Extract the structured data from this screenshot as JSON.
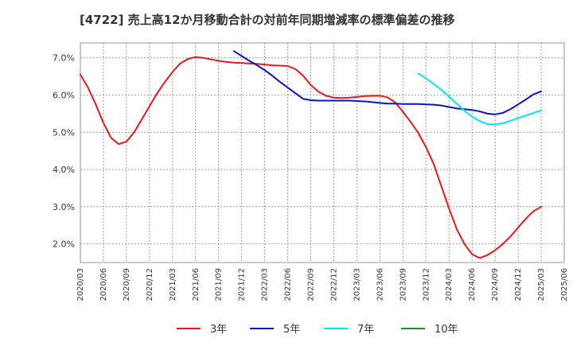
{
  "chart_data": {
    "type": "line",
    "title": "[4722]  売上高12か月移動合計の対前年同期増減率の標準偏差の推移",
    "xlabel": "",
    "ylabel": "",
    "x_ticks": [
      "2020/03",
      "2020/06",
      "2020/09",
      "2020/12",
      "2021/03",
      "2021/06",
      "2021/09",
      "2021/12",
      "2022/03",
      "2022/06",
      "2022/09",
      "2022/12",
      "2023/03",
      "2023/06",
      "2023/09",
      "2023/12",
      "2024/03",
      "2024/06",
      "2024/09",
      "2024/12",
      "2025/03",
      "2025/06"
    ],
    "y_ticks": [
      2.0,
      3.0,
      4.0,
      5.0,
      6.0,
      7.0
    ],
    "y_tick_labels": [
      "2.0%",
      "3.0%",
      "4.0%",
      "5.0%",
      "6.0%",
      "7.0%"
    ],
    "ylim": [
      1.5,
      7.4
    ],
    "grid": true,
    "legend_position": "bottom",
    "series": [
      {
        "name": "3年",
        "color": "#e41a1c",
        "points": [
          [
            "2020/03",
            6.55
          ],
          [
            "2020/04",
            6.2
          ],
          [
            "2020/05",
            5.75
          ],
          [
            "2020/06",
            5.25
          ],
          [
            "2020/07",
            4.85
          ],
          [
            "2020/08",
            4.68
          ],
          [
            "2020/09",
            4.75
          ],
          [
            "2020/10",
            5.0
          ],
          [
            "2020/11",
            5.35
          ],
          [
            "2020/12",
            5.7
          ],
          [
            "2021/01",
            6.05
          ],
          [
            "2021/02",
            6.35
          ],
          [
            "2021/03",
            6.62
          ],
          [
            "2021/04",
            6.85
          ],
          [
            "2021/05",
            6.97
          ],
          [
            "2021/06",
            7.02
          ],
          [
            "2021/07",
            7.0
          ],
          [
            "2021/08",
            6.96
          ],
          [
            "2021/09",
            6.92
          ],
          [
            "2021/10",
            6.89
          ],
          [
            "2021/11",
            6.87
          ],
          [
            "2021/12",
            6.86
          ],
          [
            "2022/01",
            6.85
          ],
          [
            "2022/02",
            6.84
          ],
          [
            "2022/03",
            6.82
          ],
          [
            "2022/04",
            6.8
          ],
          [
            "2022/05",
            6.79
          ],
          [
            "2022/06",
            6.78
          ],
          [
            "2022/07",
            6.7
          ],
          [
            "2022/08",
            6.52
          ],
          [
            "2022/09",
            6.27
          ],
          [
            "2022/10",
            6.09
          ],
          [
            "2022/11",
            5.98
          ],
          [
            "2022/12",
            5.93
          ],
          [
            "2023/01",
            5.92
          ],
          [
            "2023/02",
            5.93
          ],
          [
            "2023/03",
            5.95
          ],
          [
            "2023/04",
            5.97
          ],
          [
            "2023/05",
            5.98
          ],
          [
            "2023/06",
            5.98
          ],
          [
            "2023/07",
            5.94
          ],
          [
            "2023/08",
            5.8
          ],
          [
            "2023/09",
            5.55
          ],
          [
            "2023/10",
            5.28
          ],
          [
            "2023/11",
            4.98
          ],
          [
            "2023/12",
            4.6
          ],
          [
            "2024/01",
            4.15
          ],
          [
            "2024/02",
            3.55
          ],
          [
            "2024/03",
            2.95
          ],
          [
            "2024/04",
            2.4
          ],
          [
            "2024/05",
            2.0
          ],
          [
            "2024/06",
            1.72
          ],
          [
            "2024/07",
            1.62
          ],
          [
            "2024/08",
            1.7
          ],
          [
            "2024/09",
            1.83
          ],
          [
            "2024/10",
            2.0
          ],
          [
            "2024/11",
            2.2
          ],
          [
            "2024/12",
            2.44
          ],
          [
            "2025/01",
            2.68
          ],
          [
            "2025/02",
            2.88
          ],
          [
            "2025/03",
            3.0
          ]
        ]
      },
      {
        "name": "5年",
        "color": "#0a14c8",
        "points": [
          [
            "2021/11",
            7.18
          ],
          [
            "2021/12",
            7.05
          ],
          [
            "2022/01",
            6.92
          ],
          [
            "2022/02",
            6.8
          ],
          [
            "2022/03",
            6.67
          ],
          [
            "2022/04",
            6.52
          ],
          [
            "2022/05",
            6.35
          ],
          [
            "2022/06",
            6.2
          ],
          [
            "2022/07",
            6.05
          ],
          [
            "2022/08",
            5.9
          ],
          [
            "2022/09",
            5.86
          ],
          [
            "2022/10",
            5.85
          ],
          [
            "2022/11",
            5.85
          ],
          [
            "2022/12",
            5.85
          ],
          [
            "2023/01",
            5.85
          ],
          [
            "2023/02",
            5.85
          ],
          [
            "2023/03",
            5.84
          ],
          [
            "2023/04",
            5.83
          ],
          [
            "2023/05",
            5.81
          ],
          [
            "2023/06",
            5.79
          ],
          [
            "2023/07",
            5.77
          ],
          [
            "2023/08",
            5.77
          ],
          [
            "2023/09",
            5.76
          ],
          [
            "2023/10",
            5.76
          ],
          [
            "2023/11",
            5.76
          ],
          [
            "2023/12",
            5.75
          ],
          [
            "2024/01",
            5.74
          ],
          [
            "2024/02",
            5.72
          ],
          [
            "2024/03",
            5.68
          ],
          [
            "2024/04",
            5.64
          ],
          [
            "2024/05",
            5.62
          ],
          [
            "2024/06",
            5.6
          ],
          [
            "2024/07",
            5.56
          ],
          [
            "2024/08",
            5.5
          ],
          [
            "2024/09",
            5.48
          ],
          [
            "2024/10",
            5.52
          ],
          [
            "2024/11",
            5.62
          ],
          [
            "2024/12",
            5.75
          ],
          [
            "2025/01",
            5.88
          ],
          [
            "2025/02",
            6.02
          ],
          [
            "2025/03",
            6.1
          ]
        ]
      },
      {
        "name": "7年",
        "color": "#00e5ee",
        "points": [
          [
            "2023/11",
            6.58
          ],
          [
            "2023/12",
            6.45
          ],
          [
            "2024/01",
            6.3
          ],
          [
            "2024/02",
            6.14
          ],
          [
            "2024/03",
            5.96
          ],
          [
            "2024/04",
            5.77
          ],
          [
            "2024/05",
            5.58
          ],
          [
            "2024/06",
            5.42
          ],
          [
            "2024/07",
            5.3
          ],
          [
            "2024/08",
            5.22
          ],
          [
            "2024/09",
            5.21
          ],
          [
            "2024/10",
            5.24
          ],
          [
            "2024/11",
            5.31
          ],
          [
            "2024/12",
            5.38
          ],
          [
            "2025/01",
            5.45
          ],
          [
            "2025/02",
            5.52
          ],
          [
            "2025/03",
            5.59
          ]
        ]
      },
      {
        "name": "10年",
        "color": "#228b22",
        "points": []
      }
    ]
  }
}
